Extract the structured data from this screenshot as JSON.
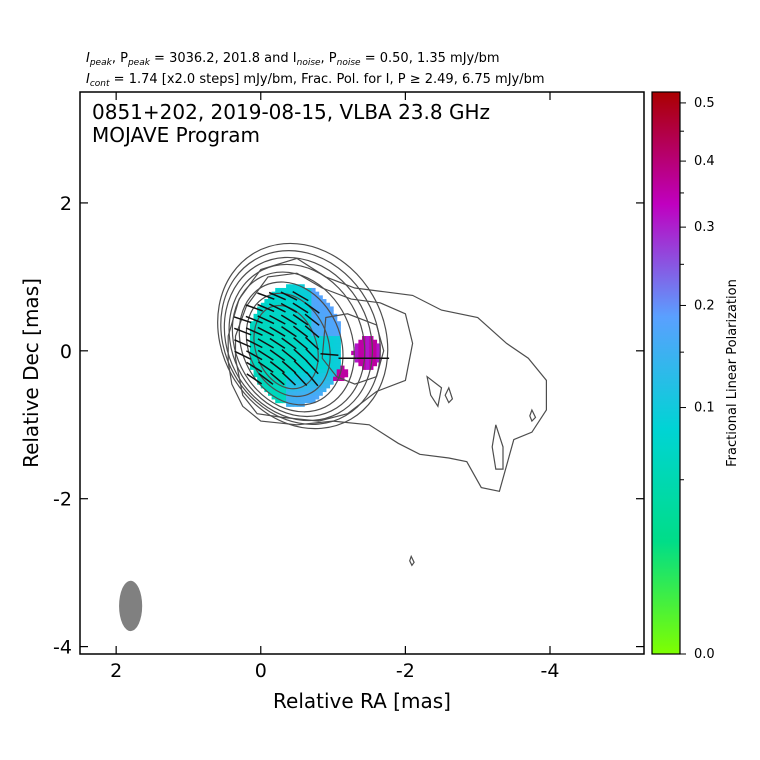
{
  "header": {
    "line1_a": "I",
    "line1_a_sub": "peak",
    "line1_b": ", P",
    "line1_b_sub": "peak",
    "line1_c": " = 3036.2, 201.8 and I",
    "line1_c_sub": "noise",
    "line1_d": ", P",
    "line1_d_sub": "noise",
    "line1_e": " = 0.50, 1.35 mJy/bm",
    "line2_a": "I",
    "line2_a_sub": "cont",
    "line2_b": " = 1.74 [x2.0 steps] mJy/bm, Frac. Pol. for I, P ≥ 2.49, 6.75 mJy/bm"
  },
  "annotation": {
    "line1": "0851+202, 2019-08-15, VLBA 23.8 GHz",
    "line2": "MOJAVE Program"
  },
  "colors": {
    "contour": "#4d4d4d",
    "evpa": "#111111",
    "beam": "#808080",
    "cmap": [
      "#7fff00",
      "#00dd88",
      "#00d4d4",
      "#5aa0ff",
      "#c000c0",
      "#aa0000"
    ]
  },
  "chart_data": {
    "type": "heatmap",
    "title": "",
    "xlabel": "Relative RA [mas]",
    "ylabel": "Relative Dec [mas]",
    "xlim": [
      2.5,
      -5.3
    ],
    "ylim": [
      -4.1,
      3.5
    ],
    "xticks": [
      2,
      0,
      -2,
      -4
    ],
    "xtick_labels": [
      "2",
      "0",
      "-2",
      "-4"
    ],
    "yticks": [
      2,
      0,
      -2,
      -4
    ],
    "ytick_labels": [
      "2",
      "0",
      "-2",
      "-4"
    ],
    "x_inverted": true,
    "grid": false,
    "colorbar": {
      "label": "Fractional Linear Polarization",
      "range": [
        0.0,
        0.52
      ],
      "ticks": [
        0.0,
        0.1,
        0.2,
        0.3,
        0.4,
        0.5
      ],
      "tick_labels": [
        "0.0",
        "0.1",
        "0.2",
        "0.3",
        "0.4",
        "0.5"
      ],
      "scale": "sqrt"
    },
    "beam": {
      "ra": 1.8,
      "dec": -3.45,
      "major_mas": 0.68,
      "minor_mas": 0.32,
      "pa_deg": 0
    },
    "contour_levels_mJy": [
      1.74,
      3.48,
      6.96,
      13.92,
      27.84,
      55.68,
      111.36,
      222.72,
      445.44,
      890.88,
      1781.76
    ],
    "fractional_polarization_regions": [
      {
        "ra": -0.35,
        "dec": 0.15,
        "value": 0.07
      },
      {
        "ra": -0.7,
        "dec": 0.6,
        "value": 0.12
      },
      {
        "ra": -0.55,
        "dec": -0.35,
        "value": 0.17
      },
      {
        "ra": -0.85,
        "dec": 0.35,
        "value": 0.3
      },
      {
        "ra": -1.4,
        "dec": -0.05,
        "value": 0.34
      },
      {
        "ra": -1.05,
        "dec": -0.3,
        "value": 0.35
      }
    ]
  }
}
